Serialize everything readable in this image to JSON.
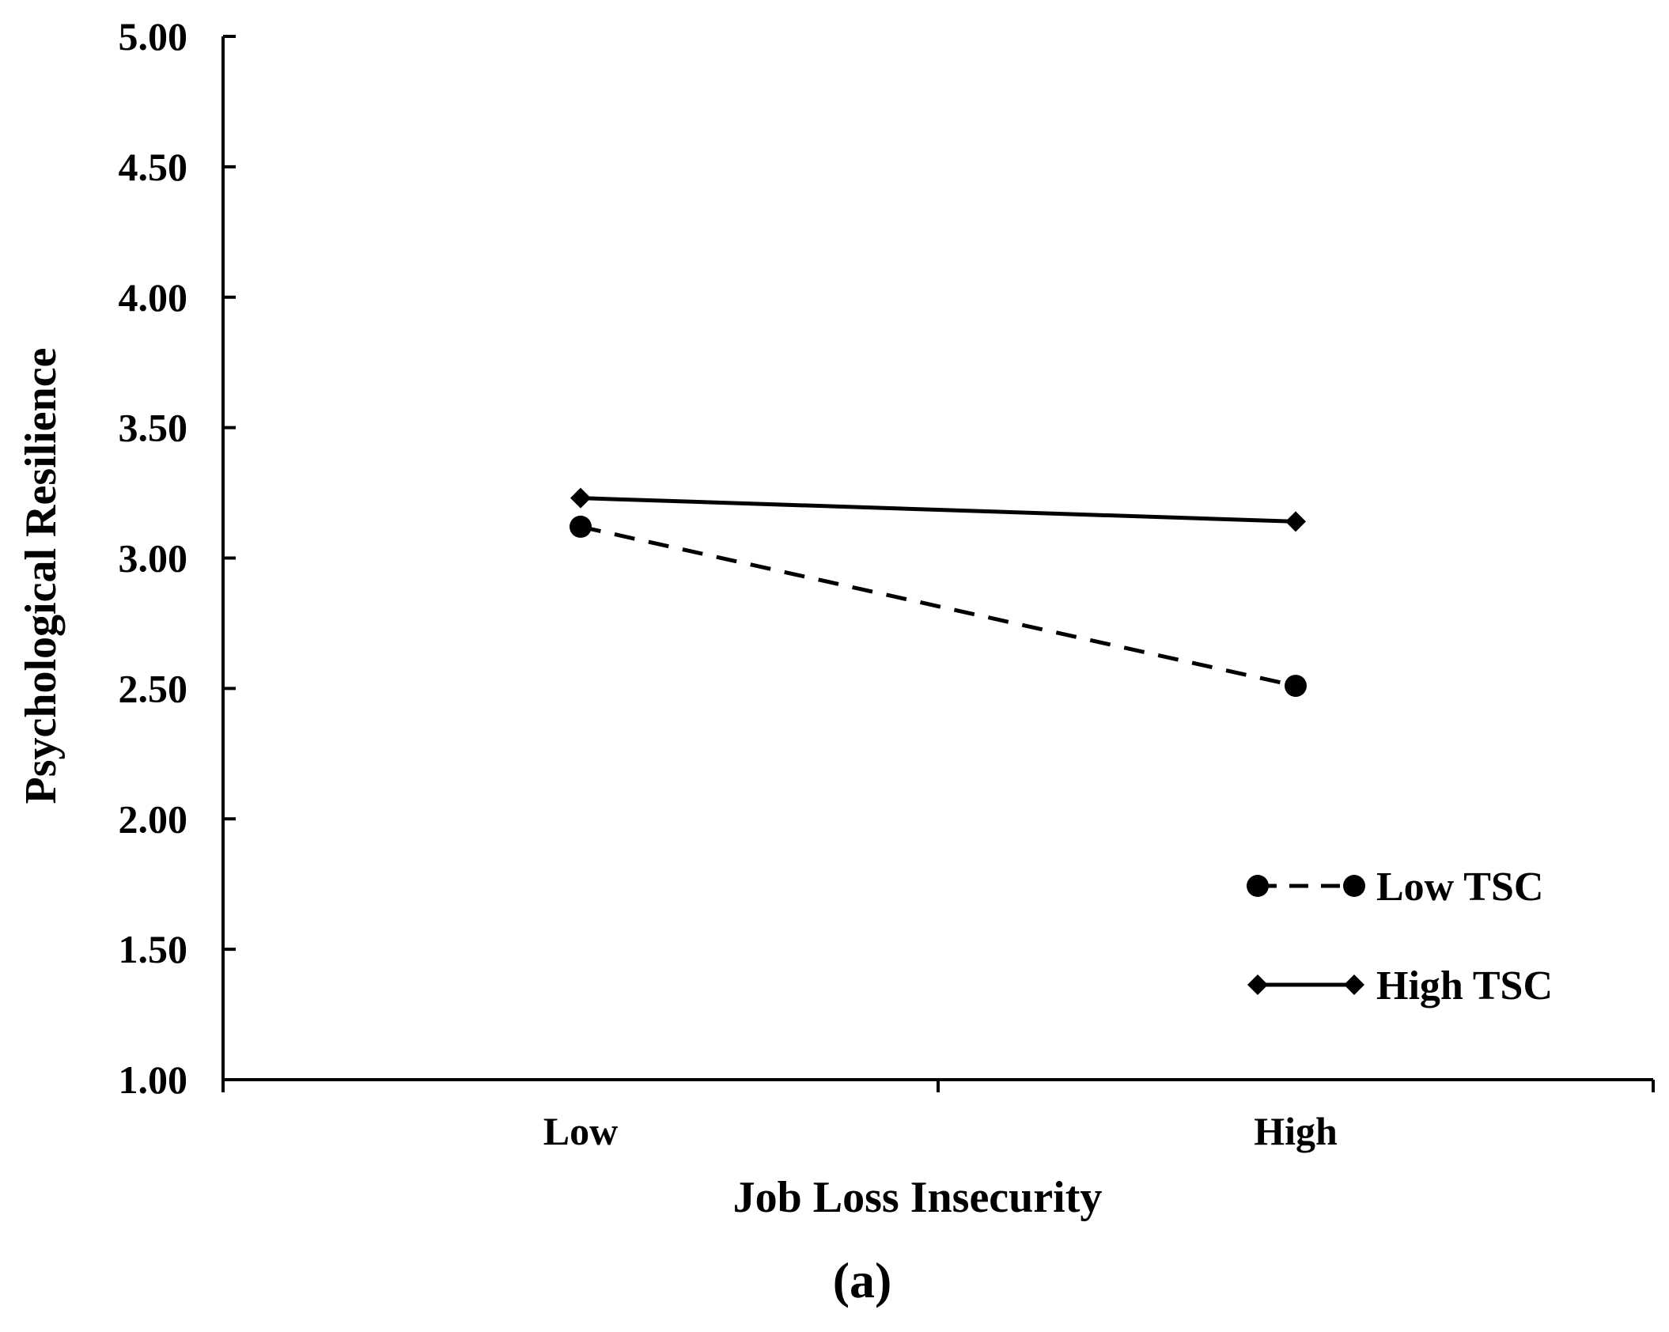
{
  "chart_data": {
    "type": "line",
    "title": "",
    "xlabel": "Job Loss Insecurity",
    "ylabel": "Psychological Resilience",
    "categories": [
      "Low",
      "High"
    ],
    "ylim": [
      1.0,
      5.0
    ],
    "yticks": [
      "1.00",
      "1.50",
      "2.00",
      "2.50",
      "3.00",
      "3.50",
      "4.00",
      "4.50",
      "5.00"
    ],
    "ytick_values": [
      1.0,
      1.5,
      2.0,
      2.5,
      3.0,
      3.5,
      4.0,
      4.5,
      5.0
    ],
    "grid": false,
    "legend_position": "bottom-right",
    "series": [
      {
        "name": "Low TSC",
        "values": [
          3.12,
          2.51
        ],
        "style": "dashed",
        "marker": "circle",
        "color": "#000000"
      },
      {
        "name": "High TSC",
        "values": [
          3.23,
          3.14
        ],
        "style": "solid",
        "marker": "diamond",
        "color": "#000000"
      }
    ],
    "panel_label": "(a)"
  }
}
